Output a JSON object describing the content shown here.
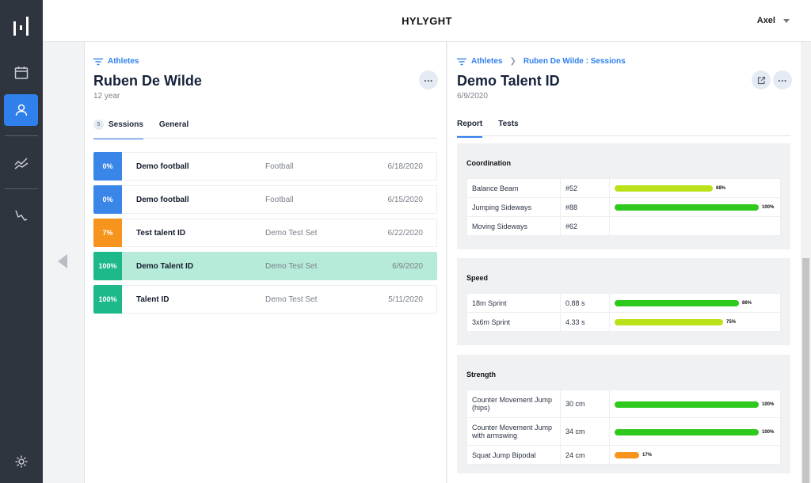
{
  "app": {
    "title": "HYLYGHT",
    "user": "Axel"
  },
  "left": {
    "breadcrumb": "Athletes",
    "athlete_name": "Ruben De Wilde",
    "age": "12 year",
    "tabs": {
      "sessions_count": "5",
      "sessions": "Sessions",
      "general": "General"
    },
    "sessions": [
      {
        "pct": "0%",
        "color": "#3a86e8",
        "name": "Demo football",
        "type": "Football",
        "date": "6/18/2020"
      },
      {
        "pct": "0%",
        "color": "#3a86e8",
        "name": "Demo football",
        "type": "Football",
        "date": "6/15/2020"
      },
      {
        "pct": "7%",
        "color": "#f7941d",
        "name": "Test talent ID",
        "type": "Demo Test Set",
        "date": "6/22/2020"
      },
      {
        "pct": "100%",
        "color": "#1db98a",
        "name": "Demo Talent ID",
        "type": "Demo Test Set",
        "date": "6/9/2020"
      },
      {
        "pct": "100%",
        "color": "#1db98a",
        "name": "Talent ID",
        "type": "Demo Test Set",
        "date": "5/11/2020"
      }
    ]
  },
  "right": {
    "breadcrumb": [
      "Athletes",
      "Ruben De Wilde : Sessions"
    ],
    "session_title": "Demo Talent ID",
    "session_date": "6/9/2020",
    "tabs": {
      "report": "Report",
      "tests": "Tests"
    },
    "sections": [
      {
        "title": "Coordination",
        "rows": [
          {
            "name": "Balance Beam",
            "value": "#52",
            "pct": 68,
            "pct_label": "68%",
            "color": "#b9e21a"
          },
          {
            "name": "Jumping Sideways",
            "value": "#88",
            "pct": 100,
            "pct_label": "100%",
            "color": "#2ec91c"
          },
          {
            "name": "Moving Sideways",
            "value": "#62",
            "pct": null,
            "pct_label": "",
            "color": ""
          }
        ]
      },
      {
        "title": "Speed",
        "rows": [
          {
            "name": "18m Sprint",
            "value": "0.88 s",
            "pct": 86,
            "pct_label": "86%",
            "color": "#2ec91c"
          },
          {
            "name": "3x6m Sprint",
            "value": "4.33 s",
            "pct": 75,
            "pct_label": "75%",
            "color": "#b9e21a"
          }
        ]
      },
      {
        "title": "Strength",
        "rows": [
          {
            "name": "Counter Movement Jump (hips)",
            "value": "30 cm",
            "pct": 100,
            "pct_label": "100%",
            "color": "#2ec91c"
          },
          {
            "name": "Counter Movement Jump with armswing",
            "value": "34 cm",
            "pct": 100,
            "pct_label": "100%",
            "color": "#2ec91c"
          },
          {
            "name": "Squat Jump Bipodal",
            "value": "24 cm",
            "pct": 17,
            "pct_label": "17%",
            "color": "#f7941d"
          }
        ]
      }
    ]
  },
  "icons": {
    "rail": [
      "logo-icon",
      "calendar-icon",
      "user-icon",
      "trend-icon",
      "chart-down-icon",
      "gear-icon"
    ],
    "export": "external-link-icon",
    "more": "more-icon",
    "filter": "filter-icon"
  }
}
